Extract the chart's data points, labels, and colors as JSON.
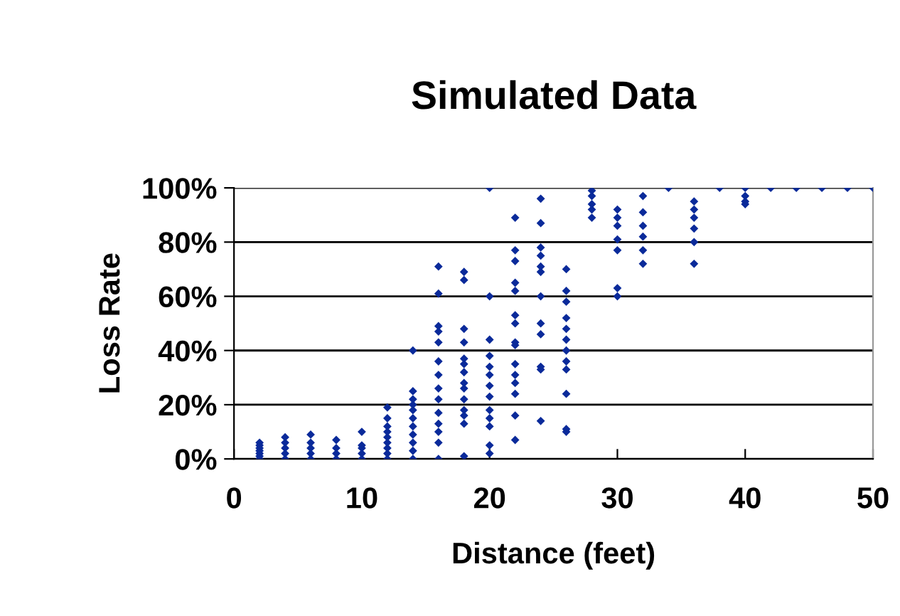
{
  "chart_data": {
    "type": "scatter",
    "title": "Simulated Data",
    "xlabel": "Distance (feet)",
    "ylabel": "Loss Rate",
    "xlim": [
      0,
      50
    ],
    "xticks": [
      0,
      10,
      20,
      30,
      40,
      50
    ],
    "ylim": [
      0,
      100
    ],
    "yticks": [
      {
        "value": 0,
        "label": "0%"
      },
      {
        "value": 20,
        "label": "20%"
      },
      {
        "value": 40,
        "label": "40%"
      },
      {
        "value": 60,
        "label": "60%"
      },
      {
        "value": 80,
        "label": "80%"
      },
      {
        "value": 100,
        "label": "100%"
      }
    ],
    "grid": "y",
    "marker": "diamond",
    "series": [
      {
        "color": "#0a2a9a",
        "x": [
          2,
          2,
          2,
          2,
          2,
          2,
          2,
          4,
          4,
          4,
          4,
          4,
          6,
          6,
          6,
          6,
          6,
          8,
          8,
          8,
          8,
          10,
          10,
          10,
          10,
          10,
          12,
          12,
          12,
          12,
          12,
          12,
          12,
          12,
          12,
          14,
          14,
          14,
          14,
          14,
          14,
          14,
          14,
          14,
          14,
          14,
          16,
          16,
          16,
          16,
          16,
          16,
          16,
          16,
          16,
          16,
          16,
          16,
          16,
          16,
          18,
          18,
          18,
          18,
          18,
          18,
          18,
          18,
          18,
          18,
          18,
          18,
          18,
          18,
          20,
          20,
          20,
          20,
          20,
          20,
          20,
          20,
          20,
          20,
          20,
          20,
          20,
          22,
          22,
          22,
          22,
          22,
          22,
          22,
          22,
          22,
          22,
          22,
          22,
          22,
          22,
          22,
          24,
          24,
          24,
          24,
          24,
          24,
          24,
          24,
          24,
          24,
          24,
          24,
          26,
          26,
          26,
          26,
          26,
          26,
          26,
          26,
          26,
          26,
          26,
          26,
          28,
          28,
          28,
          28,
          28,
          30,
          30,
          30,
          30,
          30,
          30,
          30,
          32,
          32,
          32,
          32,
          32,
          32,
          34,
          36,
          36,
          36,
          36,
          36,
          36,
          38,
          40,
          40,
          40,
          40,
          42,
          44,
          46,
          48,
          50
        ],
        "values": [
          0,
          1,
          2,
          3,
          4,
          5,
          6,
          0,
          2,
          4,
          6,
          8,
          0,
          2,
          4,
          6,
          9,
          0,
          2,
          4,
          7,
          0,
          2,
          4,
          5,
          10,
          0,
          2,
          4,
          6,
          8,
          10,
          12,
          15,
          19,
          0,
          3,
          6,
          9,
          12,
          15,
          18,
          20,
          22,
          25,
          40,
          71,
          61,
          49,
          47,
          43,
          36,
          31,
          26,
          22,
          17,
          13,
          10,
          6,
          0,
          69,
          66,
          48,
          43,
          37,
          35,
          32,
          28,
          26,
          22,
          18,
          16,
          13,
          1,
          100,
          60,
          44,
          38,
          34,
          31,
          27,
          23,
          18,
          15,
          12,
          5,
          2,
          89,
          77,
          73,
          65,
          62,
          53,
          50,
          43,
          42,
          35,
          31,
          28,
          24,
          16,
          7,
          96,
          87,
          78,
          75,
          71,
          69,
          60,
          50,
          46,
          34,
          33,
          14,
          70,
          62,
          58,
          52,
          48,
          44,
          40,
          36,
          33,
          24,
          11,
          10,
          99,
          97,
          94,
          92,
          89,
          92,
          89,
          86,
          81,
          77,
          63,
          60,
          97,
          91,
          86,
          82,
          77,
          72,
          100,
          95,
          92,
          89,
          85,
          80,
          72,
          100,
          100,
          97,
          95,
          94,
          100,
          100,
          100,
          100,
          100
        ]
      }
    ]
  }
}
